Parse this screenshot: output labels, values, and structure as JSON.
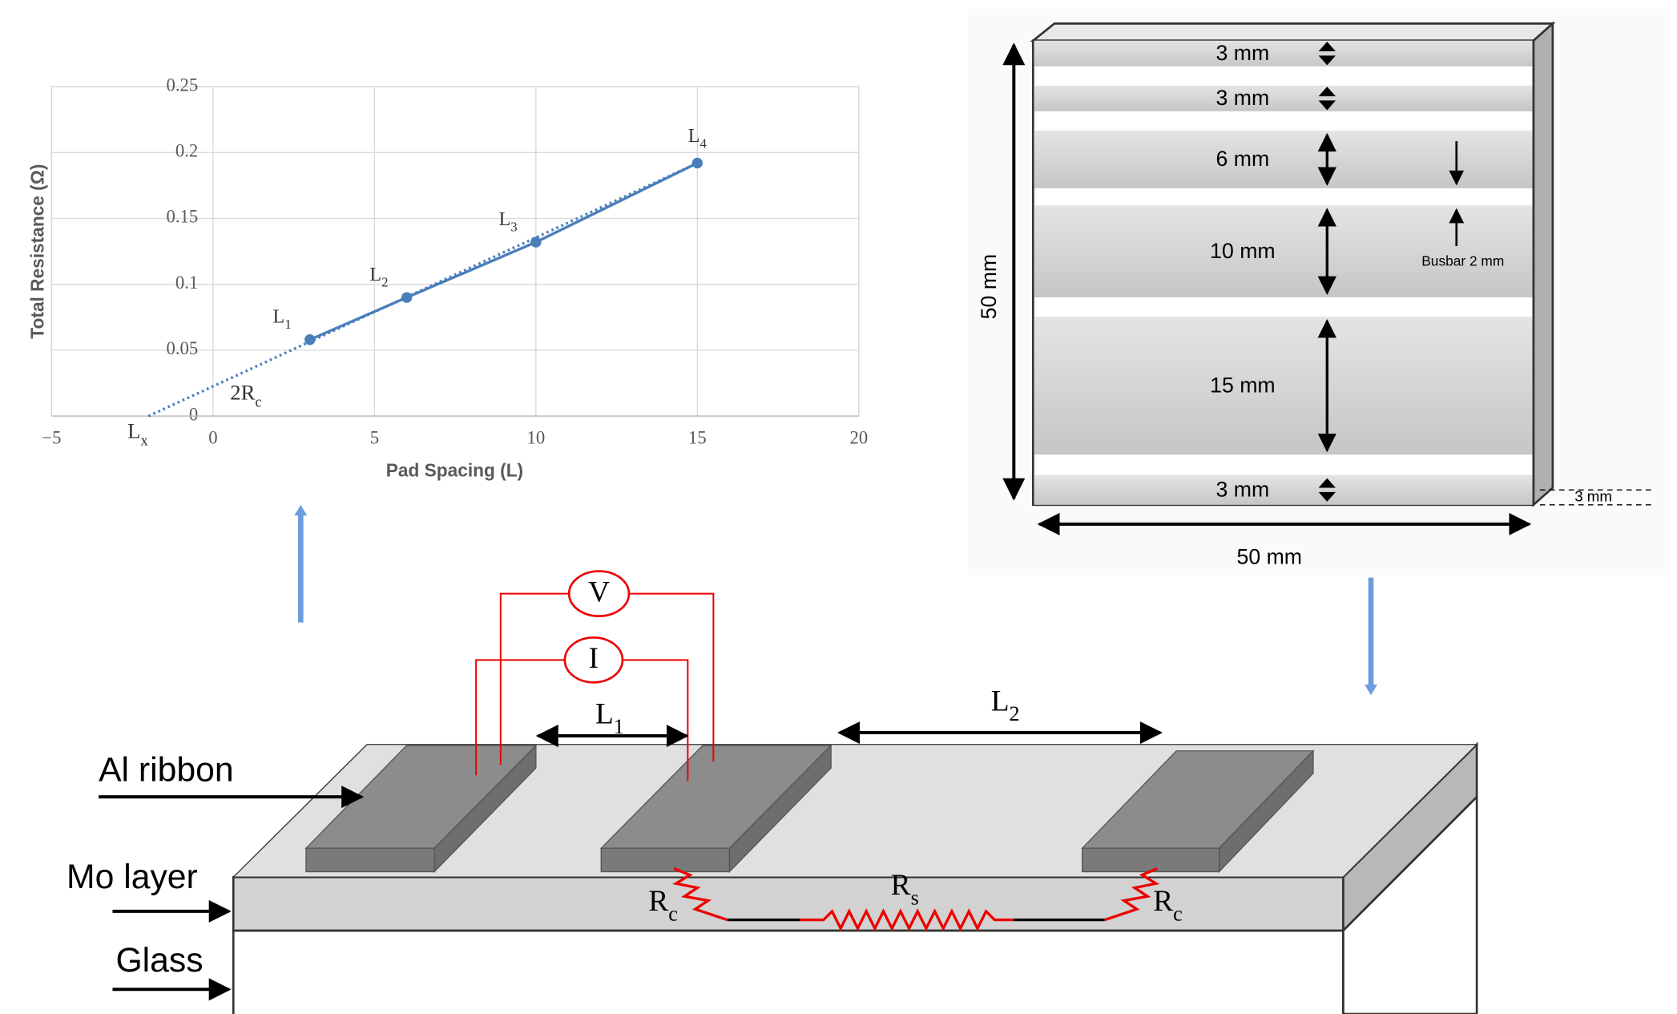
{
  "chart_data": {
    "type": "line",
    "x_label": "Pad Spacing (L)",
    "y_label": "Total Resistance (Ω)",
    "x": [
      3,
      6,
      10,
      15
    ],
    "values": [
      0.058,
      0.09,
      0.132,
      0.192
    ],
    "point_labels": [
      "L1",
      "L2",
      "L3",
      "L4"
    ],
    "color": "#4a7ebb",
    "trendline": {
      "x": [
        -2,
        15
      ],
      "values": [
        0,
        0.192
      ]
    },
    "annotations": [
      "Lx",
      "2Rc"
    ],
    "xlim": [
      -5,
      20
    ],
    "xticks": [
      {
        "value": -5,
        "label": "−5"
      },
      0,
      5,
      10,
      15,
      20
    ],
    "ylim": [
      0,
      0.25
    ],
    "yticks": [
      0,
      0.05,
      0.1,
      0.15,
      0.2,
      0.25
    ],
    "grid": true
  },
  "sample": {
    "strips": [
      "3 mm",
      "3 mm",
      "6 mm",
      "10 mm",
      "15 mm",
      "3 mm"
    ],
    "busbar": "Busbar 2 mm",
    "height": "50 mm",
    "width": "50 mm",
    "thickness": "3 mm"
  },
  "cross_section": {
    "voltage": "V",
    "current": "I",
    "spacing": [
      "L1",
      "L2"
    ],
    "layers": [
      "Al ribbon",
      "Mo layer",
      "Glass"
    ],
    "resistors": [
      "Rc",
      "Rs",
      "Rc"
    ]
  }
}
